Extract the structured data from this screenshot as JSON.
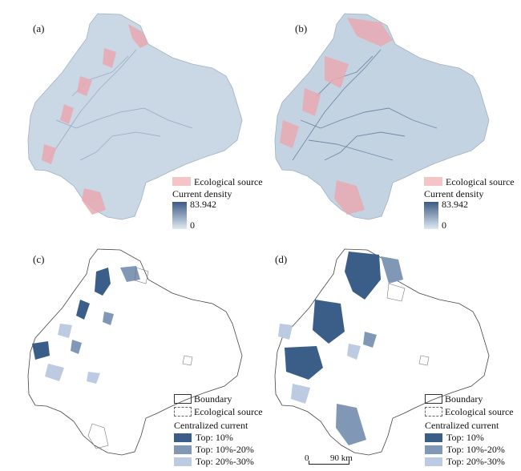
{
  "panels": [
    {
      "label": "(a)"
    },
    {
      "label": "(b)"
    },
    {
      "label": "(c)"
    },
    {
      "label": "(d)"
    }
  ],
  "legend_density": {
    "source_label": "Ecological source",
    "density_title": "Current density",
    "max": "83.942",
    "min": "0",
    "colors": {
      "source": "#f4c4c6",
      "high": "#3d5a85",
      "low": "#dfe9f2"
    }
  },
  "legend_current": {
    "boundary_label": "Boundary",
    "source_label": "Ecological source",
    "title": "Centralized current",
    "classes": [
      {
        "label": "Top: 10%",
        "color": "#3b5e89"
      },
      {
        "label": "Top: 10%-20%",
        "color": "#8098b5"
      },
      {
        "label": "Top: 20%-30%",
        "color": "#bccbe2"
      }
    ]
  },
  "scale": {
    "zero": "0",
    "distance": "90 km"
  }
}
